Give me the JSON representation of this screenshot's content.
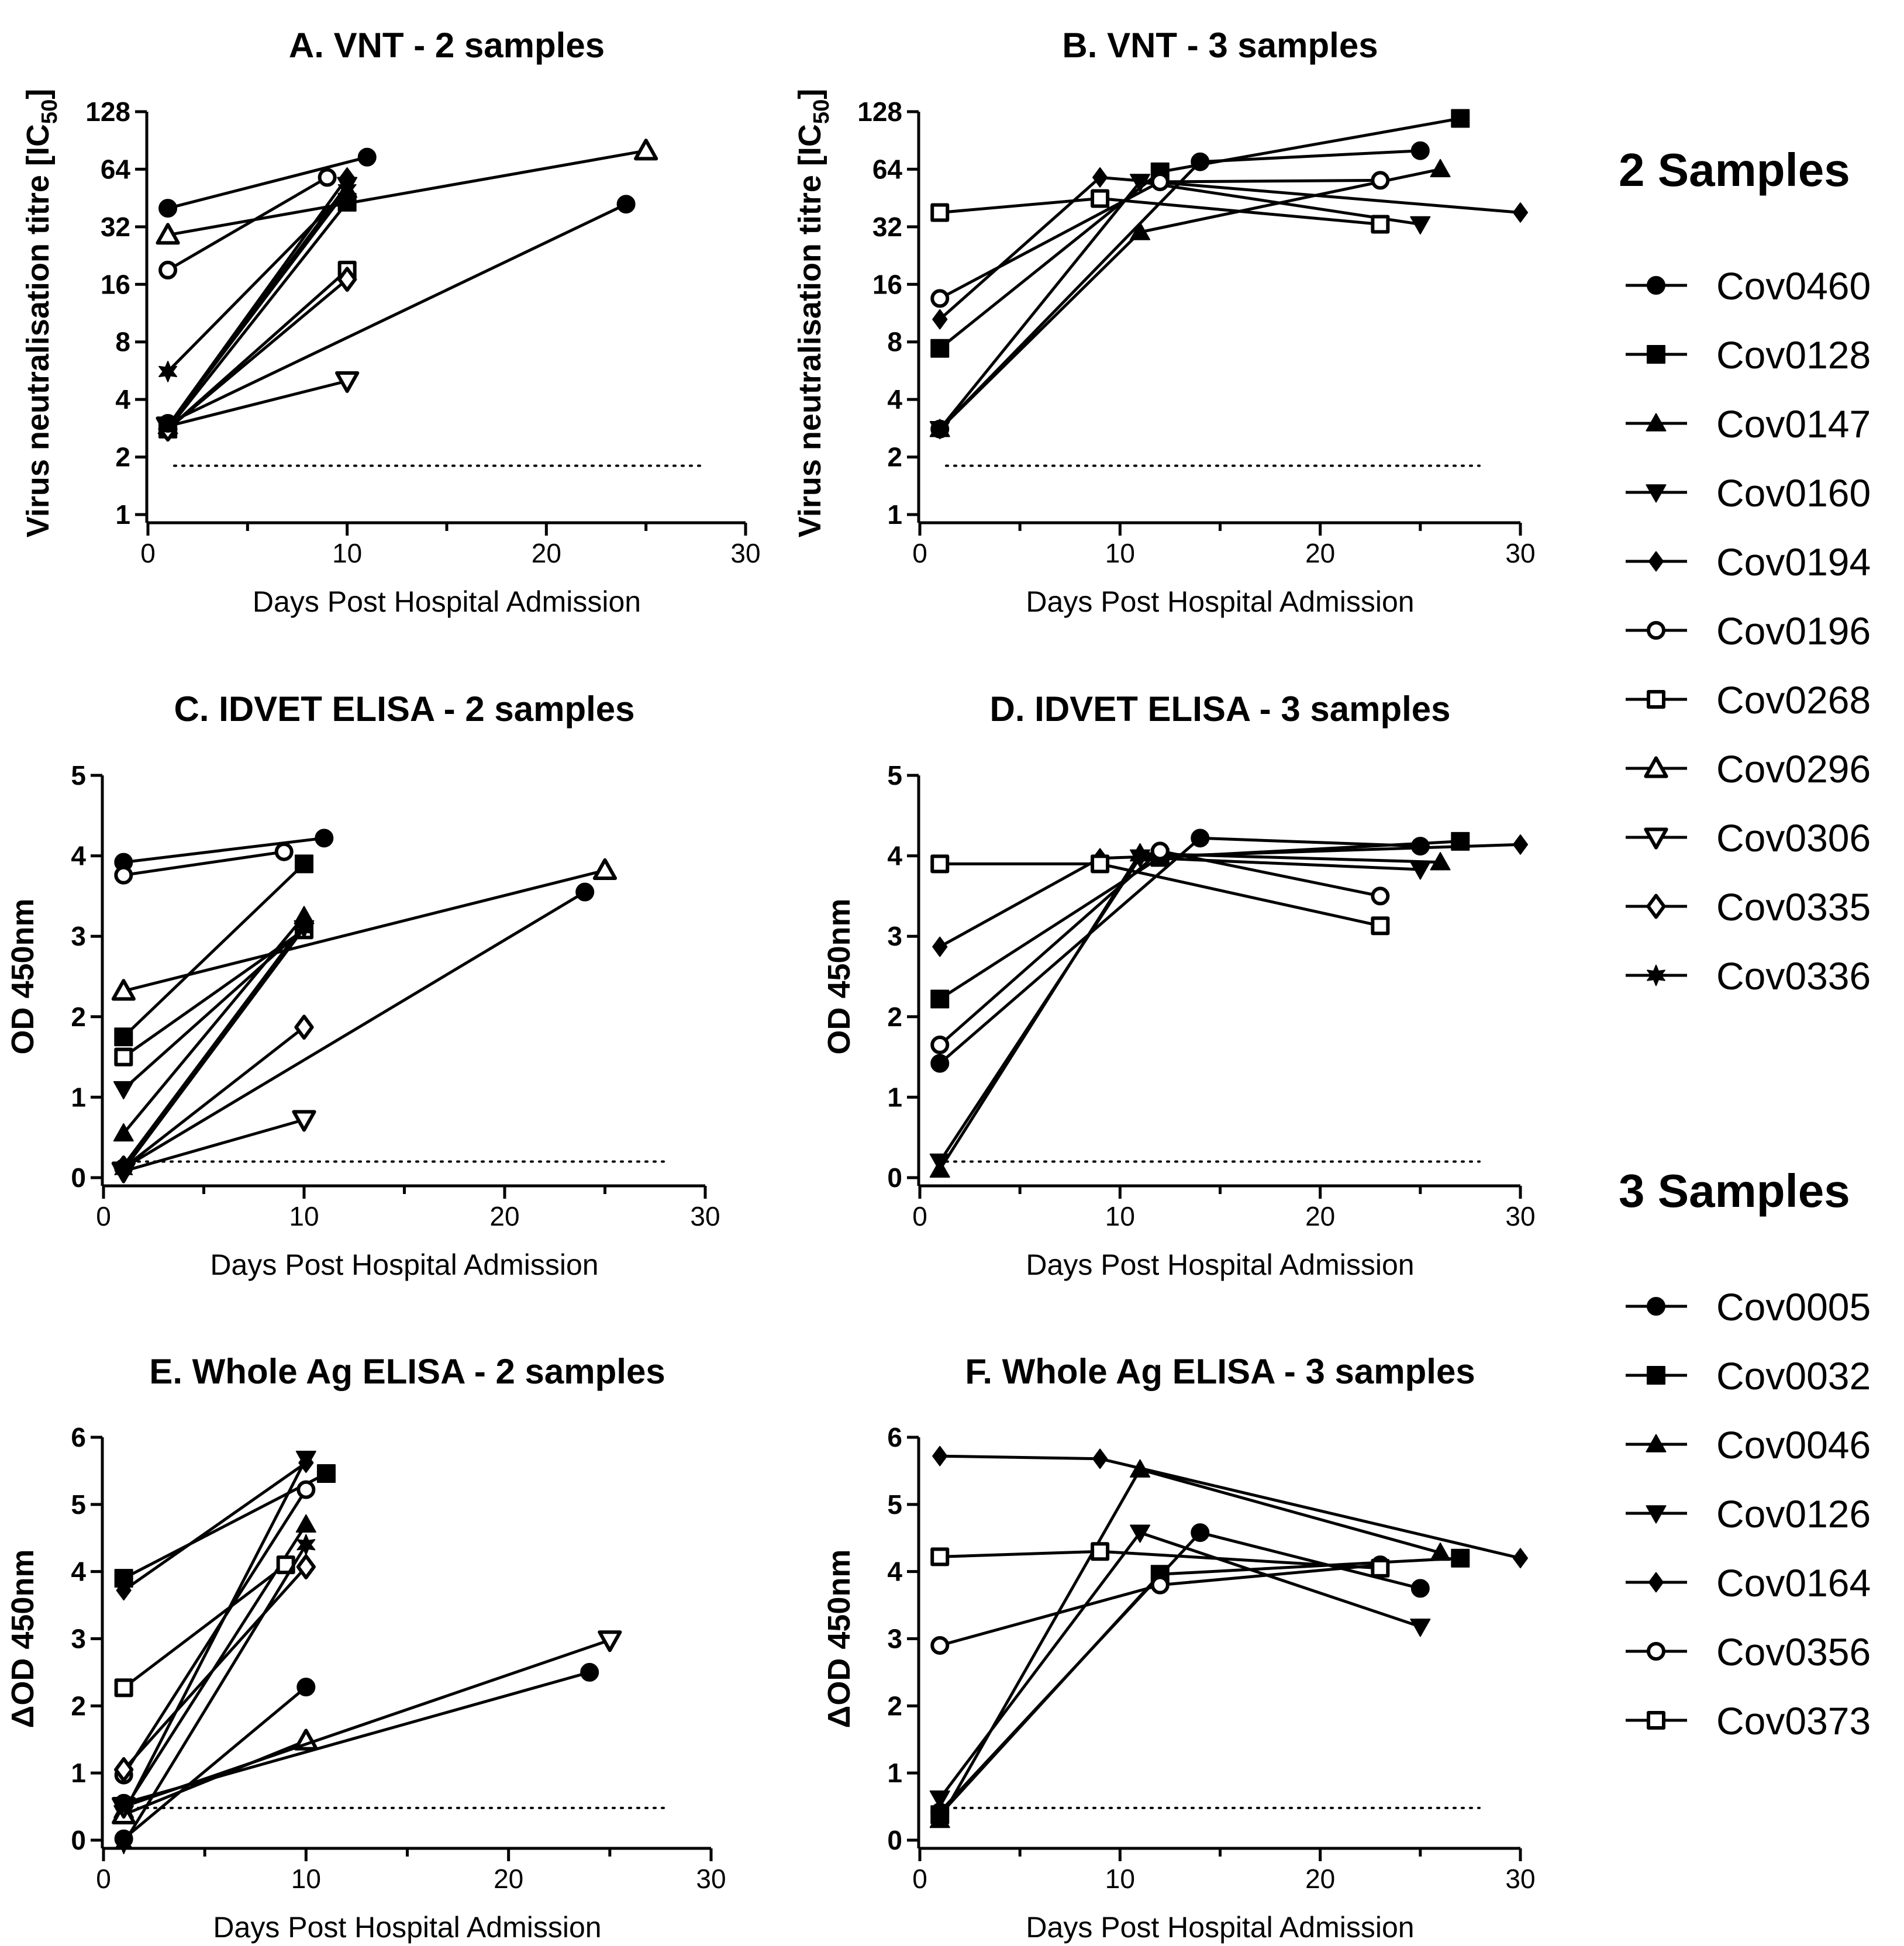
{
  "chart_data": [
    {
      "type": "line",
      "title": "A. VNT - 2 samples",
      "xlabel": "Days Post Hospital Admission",
      "ylabel": "Virus neutralisation titre [IC50]",
      "ylabel_main": "Virus neutralisation titre [IC",
      "ylabel_sub": "50",
      "ylabel_end": "]",
      "yscale": "log2",
      "xlim": [
        0,
        30
      ],
      "ylim": [
        1,
        128
      ],
      "xticks": [
        "0",
        "10",
        "20",
        "30"
      ],
      "yticks": [
        "1",
        "2",
        "4",
        "8",
        "16",
        "32",
        "64",
        "128"
      ],
      "cutoff": 1.8,
      "series": [
        {
          "name": "Cov0460",
          "marker": "circle-filled",
          "x": [
            1,
            11
          ],
          "y": [
            40,
            74
          ]
        },
        {
          "name": "Cov0128",
          "marker": "square-filled",
          "x": [
            1,
            10
          ],
          "y": [
            2.8,
            43
          ]
        },
        {
          "name": "Cov0147",
          "marker": "triangle-up-filled",
          "x": [
            1,
            10
          ],
          "y": [
            2.9,
            50
          ]
        },
        {
          "name": "Cov0160",
          "marker": "triangle-down-filled",
          "x": [
            1,
            10
          ],
          "y": [
            2.9,
            53
          ]
        },
        {
          "name": "Cov0194",
          "marker": "diamond-filled",
          "x": [
            1,
            10
          ],
          "y": [
            2.9,
            58
          ]
        },
        {
          "name": "Cov0196",
          "marker": "circle-open",
          "x": [
            1,
            9
          ],
          "y": [
            19,
            58
          ]
        },
        {
          "name": "Cov0268",
          "marker": "square-open",
          "x": [
            1,
            10
          ],
          "y": [
            2.8,
            19
          ]
        },
        {
          "name": "Cov0296",
          "marker": "triangle-up-open",
          "x": [
            1,
            25
          ],
          "y": [
            29,
            80
          ]
        },
        {
          "name": "Cov0306",
          "marker": "triangle-down-open",
          "x": [
            1,
            10
          ],
          "y": [
            2.9,
            5
          ]
        },
        {
          "name": "Cov0335",
          "marker": "diamond-open",
          "x": [
            1,
            10
          ],
          "y": [
            2.8,
            17
          ]
        },
        {
          "name": "Cov0336",
          "marker": "star-filled",
          "x": [
            1,
            10
          ],
          "y": [
            5.6,
            50
          ]
        },
        {
          "name": "",
          "marker": "circle-filled",
          "x": [
            1,
            24
          ],
          "y": [
            3.0,
            42
          ]
        }
      ]
    },
    {
      "type": "line",
      "title": "B. VNT - 3 samples",
      "xlabel": "Days Post Hospital Admission",
      "ylabel": "Virus neutralisation titre [IC50]",
      "ylabel_main": "Virus neutralisation titre [IC",
      "ylabel_sub": "50",
      "ylabel_end": "]",
      "yscale": "log2",
      "xlim": [
        0,
        30
      ],
      "ylim": [
        1,
        128
      ],
      "xticks": [
        "0",
        "10",
        "20",
        "30"
      ],
      "yticks": [
        "1",
        "2",
        "4",
        "8",
        "16",
        "32",
        "64",
        "128"
      ],
      "cutoff": 1.8,
      "series": [
        {
          "name": "Cov0005",
          "marker": "circle-filled",
          "x": [
            1,
            14,
            25
          ],
          "y": [
            2.8,
            70,
            80
          ]
        },
        {
          "name": "Cov0032",
          "marker": "square-filled",
          "x": [
            1,
            12,
            27
          ],
          "y": [
            7.4,
            62,
            118
          ]
        },
        {
          "name": "Cov0046",
          "marker": "triangle-up-filled",
          "x": [
            1,
            11,
            26
          ],
          "y": [
            2.8,
            30,
            64
          ]
        },
        {
          "name": "Cov0126",
          "marker": "triangle-down-filled",
          "x": [
            1,
            11,
            25
          ],
          "y": [
            2.8,
            55,
            33
          ]
        },
        {
          "name": "Cov0164",
          "marker": "diamond-filled",
          "x": [
            1,
            9,
            30
          ],
          "y": [
            10.5,
            58,
            38
          ]
        },
        {
          "name": "Cov0356",
          "marker": "circle-open",
          "x": [
            1,
            12,
            23
          ],
          "y": [
            13.5,
            55,
            56
          ]
        },
        {
          "name": "Cov0373",
          "marker": "square-open",
          "x": [
            1,
            9,
            23
          ],
          "y": [
            38,
            45,
            33
          ]
        }
      ]
    },
    {
      "type": "line",
      "title": "C. IDVET ELISA - 2 samples",
      "xlabel": "Days Post Hospital Admission",
      "ylabel": "OD 450nm",
      "yscale": "linear",
      "xlim": [
        0,
        30
      ],
      "ylim": [
        0,
        5
      ],
      "xticks": [
        "0",
        "10",
        "20",
        "30"
      ],
      "yticks": [
        "0",
        "1",
        "2",
        "3",
        "4",
        "5"
      ],
      "cutoff": 0.2,
      "series": [
        {
          "name": "Cov0460",
          "marker": "circle-filled",
          "x": [
            1,
            11
          ],
          "y": [
            3.92,
            4.22
          ]
        },
        {
          "name": "Cov0128",
          "marker": "square-filled",
          "x": [
            1,
            10
          ],
          "y": [
            1.75,
            3.9
          ]
        },
        {
          "name": "Cov0147",
          "marker": "triangle-up-filled",
          "x": [
            1,
            10
          ],
          "y": [
            0.55,
            3.25
          ]
        },
        {
          "name": "Cov0160",
          "marker": "triangle-down-filled",
          "x": [
            1,
            10
          ],
          "y": [
            1.1,
            3.1
          ]
        },
        {
          "name": "Cov0194",
          "marker": "diamond-filled",
          "x": [
            1,
            10
          ],
          "y": [
            0.15,
            3.15
          ]
        },
        {
          "name": "Cov0196",
          "marker": "circle-open",
          "x": [
            1,
            9
          ],
          "y": [
            3.76,
            4.05
          ]
        },
        {
          "name": "Cov0268",
          "marker": "square-open",
          "x": [
            1,
            10
          ],
          "y": [
            1.5,
            3.08
          ]
        },
        {
          "name": "Cov0296",
          "marker": "triangle-up-open",
          "x": [
            1,
            25
          ],
          "y": [
            2.32,
            3.82
          ]
        },
        {
          "name": "Cov0306",
          "marker": "triangle-down-open",
          "x": [
            1,
            10
          ],
          "y": [
            0.08,
            0.72
          ]
        },
        {
          "name": "Cov0335",
          "marker": "diamond-open",
          "x": [
            1,
            10
          ],
          "y": [
            0.12,
            1.87
          ]
        },
        {
          "name": "Cov0336",
          "marker": "star-filled",
          "x": [
            1,
            10
          ],
          "y": [
            0.1,
            3.1
          ]
        },
        {
          "name": "",
          "marker": "circle-filled",
          "x": [
            1,
            24
          ],
          "y": [
            0.12,
            3.55
          ]
        }
      ]
    },
    {
      "type": "line",
      "title": "D. IDVET ELISA - 3 samples",
      "xlabel": "Days Post Hospital Admission",
      "ylabel": "OD 450nm",
      "yscale": "linear",
      "xlim": [
        0,
        30
      ],
      "ylim": [
        0,
        5
      ],
      "xticks": [
        "0",
        "10",
        "20",
        "30"
      ],
      "yticks": [
        "0",
        "1",
        "2",
        "3",
        "4",
        "5"
      ],
      "cutoff": 0.2,
      "series": [
        {
          "name": "Cov0005",
          "marker": "circle-filled",
          "x": [
            1,
            14,
            25
          ],
          "y": [
            1.42,
            4.22,
            4.12
          ]
        },
        {
          "name": "Cov0032",
          "marker": "square-filled",
          "x": [
            1,
            12,
            27
          ],
          "y": [
            2.22,
            3.98,
            4.18
          ]
        },
        {
          "name": "Cov0046",
          "marker": "triangle-up-filled",
          "x": [
            1,
            11,
            26
          ],
          "y": [
            0.1,
            4.03,
            3.92
          ]
        },
        {
          "name": "Cov0126",
          "marker": "triangle-down-filled",
          "x": [
            1,
            11,
            25
          ],
          "y": [
            0.2,
            3.98,
            3.83
          ]
        },
        {
          "name": "Cov0164",
          "marker": "diamond-filled",
          "x": [
            1,
            9,
            30
          ],
          "y": [
            2.87,
            3.97,
            4.14
          ]
        },
        {
          "name": "Cov0356",
          "marker": "circle-open",
          "x": [
            1,
            12,
            23
          ],
          "y": [
            1.65,
            4.06,
            3.5
          ]
        },
        {
          "name": "Cov0373",
          "marker": "square-open",
          "x": [
            1,
            9,
            23
          ],
          "y": [
            3.9,
            3.9,
            3.13
          ]
        }
      ]
    },
    {
      "type": "line",
      "title": "E. Whole Ag ELISA - 2 samples",
      "xlabel": "Days Post Hospital Admission",
      "ylabel": "ΔOD 450nm",
      "yscale": "linear",
      "xlim": [
        0,
        30
      ],
      "ylim": [
        0,
        6
      ],
      "xticks": [
        "0",
        "10",
        "20",
        "30"
      ],
      "yticks": [
        "0",
        "1",
        "2",
        "3",
        "4",
        "5",
        "6"
      ],
      "cutoff": 0.48,
      "series": [
        {
          "name": "Cov0460",
          "marker": "circle-filled",
          "x": [
            1,
            10
          ],
          "y": [
            0.02,
            2.28
          ]
        },
        {
          "name": "Cov0128",
          "marker": "square-filled",
          "x": [
            1,
            11
          ],
          "y": [
            3.9,
            5.46
          ]
        },
        {
          "name": "Cov0147",
          "marker": "triangle-up-filled",
          "x": [
            1,
            10
          ],
          "y": [
            0.45,
            4.7
          ]
        },
        {
          "name": "Cov0160",
          "marker": "triangle-down-filled",
          "x": [
            1,
            10
          ],
          "y": [
            0.4,
            5.68
          ]
        },
        {
          "name": "Cov0194",
          "marker": "diamond-filled",
          "x": [
            1,
            10
          ],
          "y": [
            3.72,
            5.62
          ]
        },
        {
          "name": "Cov0196",
          "marker": "circle-open",
          "x": [
            1,
            10
          ],
          "y": [
            0.97,
            5.22
          ]
        },
        {
          "name": "Cov0268",
          "marker": "square-open",
          "x": [
            1,
            9
          ],
          "y": [
            2.27,
            4.1
          ]
        },
        {
          "name": "Cov0296",
          "marker": "triangle-up-open",
          "x": [
            1,
            10
          ],
          "y": [
            0.38,
            1.48
          ]
        },
        {
          "name": "Cov0306",
          "marker": "triangle-down-open",
          "x": [
            1,
            25
          ],
          "y": [
            0.5,
            2.98
          ]
        },
        {
          "name": "Cov0335",
          "marker": "diamond-open",
          "x": [
            1,
            10
          ],
          "y": [
            1.05,
            4.07
          ]
        },
        {
          "name": "Cov0336",
          "marker": "star-filled",
          "x": [
            1,
            10
          ],
          "y": [
            -0.05,
            4.4
          ]
        },
        {
          "name": "",
          "marker": "circle-filled",
          "x": [
            1,
            24
          ],
          "y": [
            0.55,
            2.5
          ]
        }
      ]
    },
    {
      "type": "line",
      "title": "F. Whole Ag ELISA - 3 samples",
      "xlabel": "Days Post Hospital Admission",
      "ylabel": "ΔOD 450nm",
      "yscale": "linear",
      "xlim": [
        0,
        30
      ],
      "ylim": [
        0,
        6
      ],
      "xticks": [
        "0",
        "10",
        "20",
        "30"
      ],
      "yticks": [
        "0",
        "1",
        "2",
        "3",
        "4",
        "5",
        "6"
      ],
      "cutoff": 0.48,
      "series": [
        {
          "name": "Cov0005",
          "marker": "circle-filled",
          "x": [
            1,
            14,
            25
          ],
          "y": [
            0.42,
            4.58,
            3.75
          ]
        },
        {
          "name": "Cov0032",
          "marker": "square-filled",
          "x": [
            1,
            12,
            27
          ],
          "y": [
            0.38,
            3.96,
            4.2
          ]
        },
        {
          "name": "Cov0046",
          "marker": "triangle-up-filled",
          "x": [
            1,
            11,
            26
          ],
          "y": [
            0.3,
            5.52,
            4.28
          ]
        },
        {
          "name": "Cov0126",
          "marker": "triangle-down-filled",
          "x": [
            1,
            11,
            25
          ],
          "y": [
            0.62,
            4.58,
            3.18
          ]
        },
        {
          "name": "Cov0164",
          "marker": "diamond-filled",
          "x": [
            1,
            9,
            30
          ],
          "y": [
            5.72,
            5.68,
            4.2
          ]
        },
        {
          "name": "Cov0356",
          "marker": "circle-open",
          "x": [
            1,
            12,
            23
          ],
          "y": [
            2.9,
            3.8,
            4.1
          ]
        },
        {
          "name": "Cov0373",
          "marker": "square-open",
          "x": [
            1,
            9,
            23
          ],
          "y": [
            4.22,
            4.3,
            4.05
          ]
        }
      ]
    }
  ],
  "legend": {
    "groups": [
      {
        "heading": "2 Samples",
        "items": [
          {
            "name": "Cov0460",
            "marker": "circle-filled"
          },
          {
            "name": "Cov0128",
            "marker": "square-filled"
          },
          {
            "name": "Cov0147",
            "marker": "triangle-up-filled"
          },
          {
            "name": "Cov0160",
            "marker": "triangle-down-filled"
          },
          {
            "name": "Cov0194",
            "marker": "diamond-filled"
          },
          {
            "name": "Cov0196",
            "marker": "circle-open"
          },
          {
            "name": "Cov0268",
            "marker": "square-open"
          },
          {
            "name": "Cov0296",
            "marker": "triangle-up-open"
          },
          {
            "name": "Cov0306",
            "marker": "triangle-down-open"
          },
          {
            "name": "Cov0335",
            "marker": "diamond-open"
          },
          {
            "name": "Cov0336",
            "marker": "star-filled"
          }
        ]
      },
      {
        "heading": "3 Samples",
        "items": [
          {
            "name": "Cov0005",
            "marker": "circle-filled"
          },
          {
            "name": "Cov0032",
            "marker": "square-filled"
          },
          {
            "name": "Cov0046",
            "marker": "triangle-up-filled"
          },
          {
            "name": "Cov0126",
            "marker": "triangle-down-filled"
          },
          {
            "name": "Cov0164",
            "marker": "diamond-filled"
          },
          {
            "name": "Cov0356",
            "marker": "circle-open"
          },
          {
            "name": "Cov0373",
            "marker": "square-open"
          }
        ]
      }
    ]
  }
}
